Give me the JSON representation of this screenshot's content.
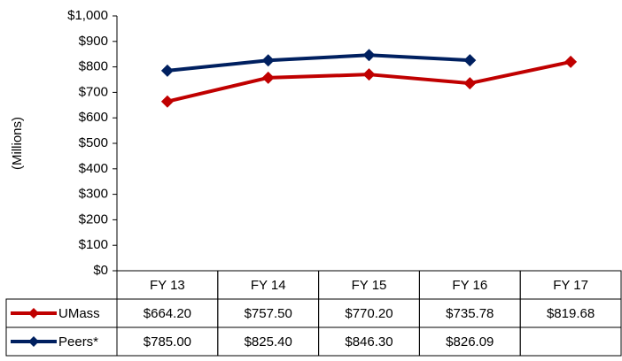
{
  "chart_data": {
    "type": "line",
    "y_label": "(Millions)",
    "categories": [
      "FY 13",
      "FY 14",
      "FY 15",
      "FY 16",
      "FY 17"
    ],
    "series": [
      {
        "name": "UMass",
        "color": "#c00000",
        "values": [
          664.2,
          757.5,
          770.2,
          735.78,
          819.68
        ],
        "value_labels": [
          "$664.20",
          "$757.50",
          "$770.20",
          "$735.78",
          "$819.68"
        ]
      },
      {
        "name": "Peers*",
        "color": "#002060",
        "values": [
          785.0,
          825.4,
          846.3,
          826.09,
          null
        ],
        "value_labels": [
          "$785.00",
          "$825.40",
          "$846.30",
          "$826.09",
          null
        ]
      }
    ],
    "ylim": [
      0,
      1000
    ],
    "yticks": [
      {
        "value": 0,
        "label": "$0"
      },
      {
        "value": 100,
        "label": "$100"
      },
      {
        "value": 200,
        "label": "$200"
      },
      {
        "value": 300,
        "label": "$300"
      },
      {
        "value": 400,
        "label": "$400"
      },
      {
        "value": 500,
        "label": "$500"
      },
      {
        "value": 600,
        "label": "$600"
      },
      {
        "value": 700,
        "label": "$700"
      },
      {
        "value": 800,
        "label": "$800"
      },
      {
        "value": 900,
        "label": "$900"
      },
      {
        "value": 1000,
        "label": "$1,000"
      }
    ],
    "data_table": true
  }
}
